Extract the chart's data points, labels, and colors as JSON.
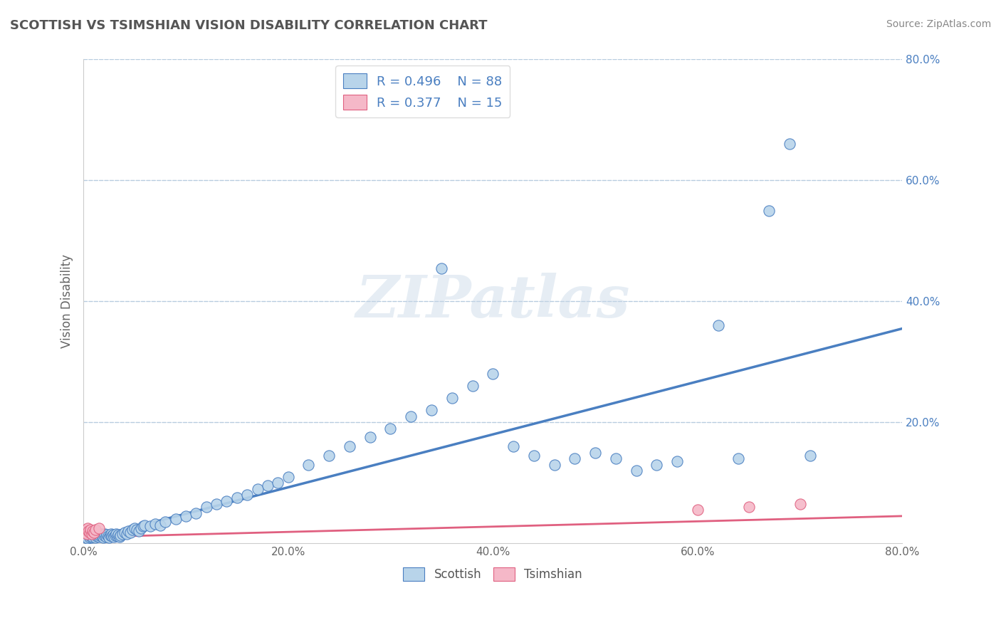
{
  "title": "SCOTTISH VS TSIMSHIAN VISION DISABILITY CORRELATION CHART",
  "source": "Source: ZipAtlas.com",
  "ylabel": "Vision Disability",
  "xlim": [
    0.0,
    0.8
  ],
  "ylim": [
    0.0,
    0.8
  ],
  "xtick_labels": [
    "0.0%",
    "20.0%",
    "40.0%",
    "60.0%",
    "80.0%"
  ],
  "xtick_vals": [
    0.0,
    0.2,
    0.4,
    0.6,
    0.8
  ],
  "ytick_labels": [
    "20.0%",
    "40.0%",
    "60.0%",
    "80.0%"
  ],
  "ytick_vals": [
    0.2,
    0.4,
    0.6,
    0.8
  ],
  "scottish_R": 0.496,
  "scottish_N": 88,
  "tsimshian_R": 0.377,
  "tsimshian_N": 15,
  "scottish_color": "#b8d4ea",
  "tsimshian_color": "#f5b8c8",
  "scottish_line_color": "#4a7fc1",
  "tsimshian_line_color": "#e06080",
  "legend_text_color": "#4a7fc1",
  "watermark": "ZIPatlas",
  "background_color": "#ffffff",
  "grid_color": "#b8cce0",
  "title_color": "#555555",
  "scottish_slope": 0.4375,
  "scottish_intercept": 0.005,
  "tsimshian_slope": 0.04375,
  "tsimshian_intercept": 0.01,
  "scottish_x": [
    0.002,
    0.003,
    0.004,
    0.005,
    0.006,
    0.007,
    0.008,
    0.009,
    0.01,
    0.011,
    0.012,
    0.013,
    0.014,
    0.015,
    0.016,
    0.017,
    0.018,
    0.019,
    0.02,
    0.021,
    0.022,
    0.023,
    0.024,
    0.025,
    0.026,
    0.027,
    0.028,
    0.029,
    0.03,
    0.031,
    0.032,
    0.033,
    0.034,
    0.035,
    0.036,
    0.038,
    0.04,
    0.042,
    0.044,
    0.046,
    0.048,
    0.05,
    0.052,
    0.054,
    0.056,
    0.058,
    0.06,
    0.065,
    0.07,
    0.075,
    0.08,
    0.09,
    0.1,
    0.11,
    0.12,
    0.13,
    0.14,
    0.15,
    0.16,
    0.17,
    0.18,
    0.19,
    0.2,
    0.22,
    0.24,
    0.26,
    0.28,
    0.3,
    0.32,
    0.34,
    0.35,
    0.36,
    0.38,
    0.4,
    0.42,
    0.44,
    0.46,
    0.48,
    0.5,
    0.52,
    0.54,
    0.56,
    0.58,
    0.62,
    0.64,
    0.67,
    0.69,
    0.71
  ],
  "scottish_y": [
    0.01,
    0.012,
    0.008,
    0.015,
    0.01,
    0.012,
    0.009,
    0.011,
    0.015,
    0.013,
    0.01,
    0.012,
    0.014,
    0.011,
    0.013,
    0.015,
    0.012,
    0.01,
    0.013,
    0.015,
    0.011,
    0.014,
    0.012,
    0.01,
    0.013,
    0.015,
    0.012,
    0.014,
    0.011,
    0.013,
    0.016,
    0.012,
    0.014,
    0.011,
    0.013,
    0.015,
    0.018,
    0.016,
    0.02,
    0.018,
    0.022,
    0.025,
    0.022,
    0.02,
    0.025,
    0.028,
    0.03,
    0.028,
    0.032,
    0.03,
    0.035,
    0.04,
    0.045,
    0.05,
    0.06,
    0.065,
    0.07,
    0.075,
    0.08,
    0.09,
    0.095,
    0.1,
    0.11,
    0.13,
    0.145,
    0.16,
    0.175,
    0.19,
    0.21,
    0.22,
    0.455,
    0.24,
    0.26,
    0.28,
    0.16,
    0.145,
    0.13,
    0.14,
    0.15,
    0.14,
    0.12,
    0.13,
    0.135,
    0.36,
    0.14,
    0.55,
    0.66,
    0.145
  ],
  "tsimshian_x": [
    0.001,
    0.002,
    0.003,
    0.004,
    0.005,
    0.006,
    0.007,
    0.008,
    0.009,
    0.01,
    0.012,
    0.015,
    0.6,
    0.65,
    0.7
  ],
  "tsimshian_y": [
    0.018,
    0.022,
    0.015,
    0.025,
    0.02,
    0.018,
    0.022,
    0.015,
    0.02,
    0.018,
    0.022,
    0.025,
    0.055,
    0.06,
    0.065
  ]
}
